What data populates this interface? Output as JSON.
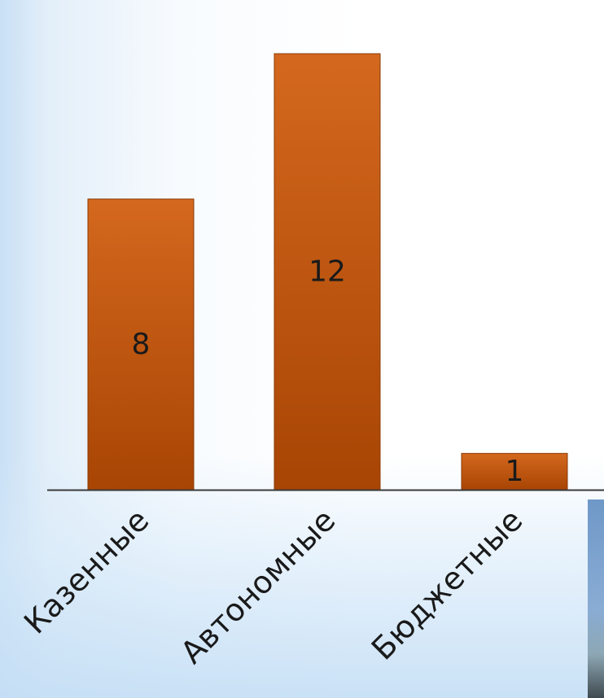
{
  "chart_data": {
    "type": "bar",
    "categories": [
      "Казенные",
      "Автономные",
      "Бюджетные"
    ],
    "values": [
      8,
      12,
      1
    ],
    "data_labels": [
      "8",
      "12",
      "1"
    ],
    "title": "",
    "xlabel": "",
    "ylabel": "",
    "ylim": [
      0,
      12
    ],
    "grid": false,
    "legend": "none",
    "colors": {
      "bar_top": "#d4681e",
      "bar_bottom": "#a84504",
      "bar_stroke": "#8a3a06",
      "axis": "#3a3a3a",
      "text": "#1a1a1a"
    }
  }
}
